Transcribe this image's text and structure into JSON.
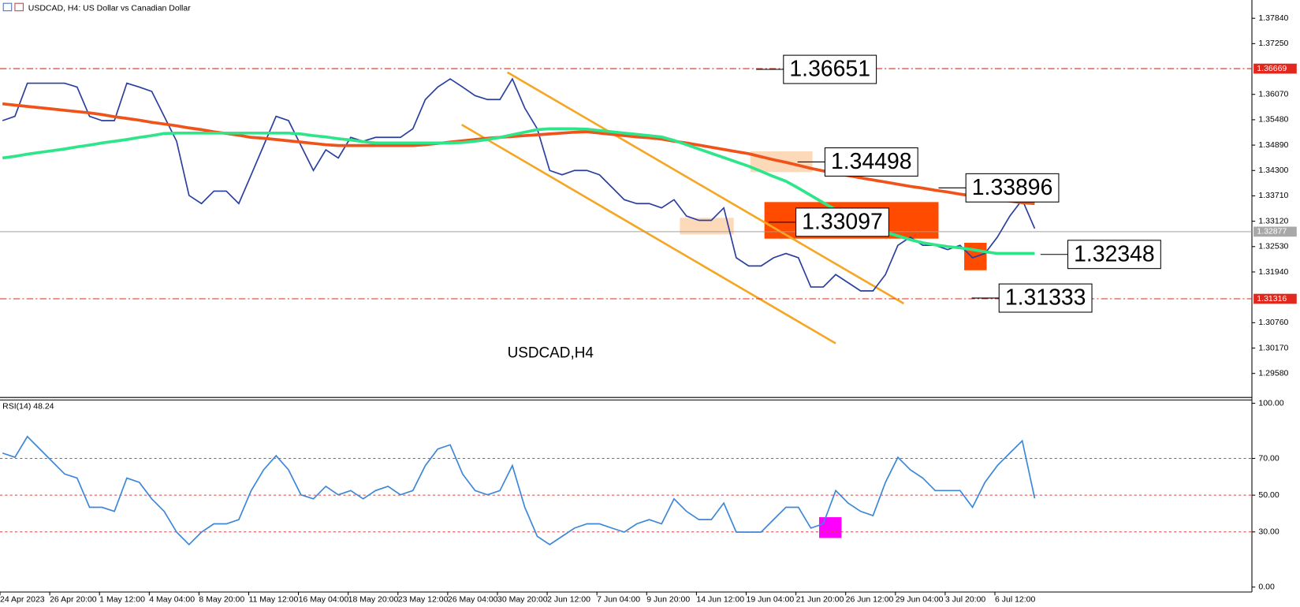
{
  "chart_data": [
    {
      "type": "line",
      "title": "USDCAD, H4:  US Dollar vs Canadian Dollar",
      "label": "USDCAD,H4",
      "categories": [
        "24 Apr 2023",
        null,
        null,
        null,
        "26 Apr 20:00",
        null,
        null,
        null,
        "1 May 12:00",
        null,
        null,
        null,
        "4 May 04:00",
        null,
        null,
        null,
        "8 May 20:00",
        null,
        null,
        null,
        "11 May 12:00",
        null,
        null,
        null,
        "16 May 04:00",
        null,
        null,
        null,
        "18 May 20:00",
        null,
        null,
        null,
        "23 May 12:00",
        null,
        null,
        null,
        "26 May 04:00",
        null,
        null,
        null,
        "30 May 20:00",
        null,
        null,
        null,
        "2 Jun 12:00",
        null,
        null,
        null,
        "7 Jun 04:00",
        null,
        null,
        null,
        "9 Jun 20:00",
        null,
        null,
        null,
        "14 Jun 12:00",
        null,
        null,
        null,
        "19 Jun 04:00",
        null,
        null,
        null,
        "21 Jun 20:00",
        null,
        null,
        null,
        "26 Jun 12:00",
        null,
        null,
        null,
        "29 Jun 04:00",
        null,
        null,
        null,
        "3 Jul 20:00",
        null,
        null,
        null,
        "6 Jul 12:00",
        null,
        null,
        null
      ],
      "series": [
        {
          "color": "#2a3f9e",
          "values": [
            1.3546,
            1.3556,
            1.3633,
            1.3633,
            1.3633,
            1.3633,
            1.3624,
            1.3556,
            1.3546,
            1.3546,
            1.3633,
            1.3624,
            1.3614,
            1.3556,
            1.3498,
            1.3372,
            1.3353,
            1.3382,
            1.3382,
            1.3353,
            1.342,
            1.3488,
            1.3556,
            1.3546,
            1.3488,
            1.343,
            1.3478,
            1.3459,
            1.3507,
            1.3498,
            1.3507,
            1.3507,
            1.3507,
            1.3527,
            1.3595,
            1.3624,
            1.3643,
            1.3624,
            1.3604,
            1.3595,
            1.3595,
            1.3643,
            1.3575,
            1.3527,
            1.343,
            1.342,
            1.343,
            1.343,
            1.342,
            1.3391,
            1.3362,
            1.3353,
            1.3353,
            1.3343,
            1.3362,
            1.3324,
            1.3314,
            1.3314,
            1.3343,
            1.3227,
            1.3208,
            1.3208,
            1.3227,
            1.3237,
            1.3227,
            1.3159,
            1.3159,
            1.3188,
            1.3169,
            1.315,
            1.315,
            1.3188,
            1.3256,
            1.3275,
            1.3256,
            1.3256,
            1.3246,
            1.3256,
            1.3227,
            1.3237,
            1.3275,
            1.3324,
            1.3362,
            1.3295
          ]
        },
        {
          "color": "#f0531a",
          "values": [
            1.3585,
            1.3582,
            1.3579,
            1.3576,
            1.3573,
            1.357,
            1.3567,
            1.3564,
            1.356,
            1.3555,
            1.3551,
            1.3547,
            1.3542,
            1.3538,
            1.3534,
            1.3529,
            1.3525,
            1.352,
            1.3516,
            1.3512,
            1.3507,
            1.3505,
            1.3502,
            1.3499,
            1.3496,
            1.3493,
            1.349,
            1.3488,
            1.3488,
            1.3488,
            1.3488,
            1.3488,
            1.3488,
            1.3488,
            1.349,
            1.3493,
            1.3496,
            1.3499,
            1.3502,
            1.3505,
            1.3507,
            1.3509,
            1.3511,
            1.3513,
            1.3515,
            1.3517,
            1.3519,
            1.352,
            1.3517,
            1.3514,
            1.3511,
            1.3508,
            1.3506,
            1.3503,
            1.3498,
            1.3494,
            1.3489,
            1.3484,
            1.3479,
            1.3474,
            1.3469,
            1.3462,
            1.3455,
            1.3449,
            1.3442,
            1.3435,
            1.3429,
            1.3423,
            1.3418,
            1.3413,
            1.3408,
            1.3403,
            1.3398,
            1.3393,
            1.3389,
            1.3384,
            1.338,
            1.3375,
            1.3371,
            1.3367,
            1.3362,
            1.3359,
            1.3355,
            1.3353
          ]
        },
        {
          "color": "#2ee58a",
          "values": [
            1.3459,
            1.3463,
            1.3468,
            1.3472,
            1.3476,
            1.348,
            1.3485,
            1.3489,
            1.3494,
            1.3498,
            1.3502,
            1.3507,
            1.3511,
            1.3516,
            1.3517,
            1.3517,
            1.3517,
            1.3517,
            1.3517,
            1.3517,
            1.3517,
            1.3517,
            1.3517,
            1.3517,
            1.3515,
            1.3511,
            1.3508,
            1.3504,
            1.3501,
            1.3497,
            1.3494,
            1.3494,
            1.3494,
            1.3494,
            1.3494,
            1.3494,
            1.3494,
            1.3495,
            1.3498,
            1.3502,
            1.3507,
            1.3513,
            1.3519,
            1.3525,
            1.3527,
            1.3527,
            1.3527,
            1.3526,
            1.3523,
            1.352,
            1.3517,
            1.3514,
            1.3511,
            1.3508,
            1.35,
            1.349,
            1.348,
            1.347,
            1.346,
            1.345,
            1.344,
            1.3428,
            1.3416,
            1.3405,
            1.3389,
            1.3372,
            1.3355,
            1.3339,
            1.3325,
            1.331,
            1.3295,
            1.3286,
            1.3278,
            1.3269,
            1.3262,
            1.3257,
            1.3253,
            1.325,
            1.3246,
            1.3241,
            1.3237,
            1.3237,
            1.3237,
            1.3237
          ]
        }
      ],
      "ylim": [
        1.29021,
        1.38265
      ],
      "yticks": [
        {
          "value": 1.3784,
          "label": "1.37840"
        },
        {
          "value": 1.3725,
          "label": "1.37250"
        },
        {
          "value": 1.3607,
          "label": "1.36070"
        },
        {
          "value": 1.3548,
          "label": "1.35480"
        },
        {
          "value": 1.3489,
          "label": "1.34890"
        },
        {
          "value": 1.343,
          "label": "1.34300"
        },
        {
          "value": 1.3371,
          "label": "1.33710"
        },
        {
          "value": 1.3312,
          "label": "1.33120"
        },
        {
          "value": 1.3253,
          "label": "1.32530"
        },
        {
          "value": 1.3194,
          "label": "1.31940"
        },
        {
          "value": 1.3076,
          "label": "1.30760"
        },
        {
          "value": 1.3017,
          "label": "1.30170"
        },
        {
          "value": 1.2958,
          "label": "1.29580"
        }
      ],
      "levels": [
        1.36669,
        1.31316
      ],
      "level_color": "#e0281e",
      "current_price": 1.32877,
      "annotations": [
        1.36651,
        1.34498,
        1.33896,
        1.33097,
        1.32348,
        1.31333
      ]
    },
    {
      "type": "line",
      "title": "RSI(14) 48.24",
      "series": [
        {
          "color": "#3d87d8",
          "values": [
            72.9,
            70.6,
            81.9,
            75.1,
            68.3,
            61.5,
            59.3,
            43.4,
            43.4,
            41.2,
            59.3,
            57.0,
            48.0,
            41.2,
            29.9,
            23.1,
            29.9,
            34.4,
            34.4,
            36.7,
            52.5,
            63.8,
            71.5,
            63.8,
            50.2,
            48.0,
            54.8,
            50.2,
            52.5,
            48.0,
            52.5,
            54.8,
            50.2,
            52.5,
            66.1,
            75.1,
            77.4,
            61.5,
            52.5,
            50.2,
            52.5,
            66.1,
            43.4,
            27.6,
            23.1,
            27.6,
            32.1,
            34.4,
            34.4,
            32.1,
            29.9,
            34.4,
            36.7,
            34.4,
            48.0,
            41.2,
            36.7,
            36.7,
            45.7,
            29.9,
            29.9,
            29.9,
            36.7,
            43.4,
            43.4,
            32.1,
            34.4,
            52.5,
            45.7,
            41.2,
            38.9,
            57.0,
            70.6,
            63.8,
            59.3,
            52.5,
            52.5,
            52.5,
            43.4,
            57.0,
            66.1,
            72.9,
            79.6,
            48.24
          ]
        }
      ],
      "ylim": [
        -2.7,
        101.8
      ],
      "yticks": [
        {
          "value": 100,
          "label": "100.00"
        },
        {
          "value": 70,
          "label": "70.00"
        },
        {
          "value": 50,
          "label": "50.00"
        },
        {
          "value": 30,
          "label": "30.00"
        },
        {
          "value": 0,
          "label": "0.00"
        }
      ],
      "levels": [
        70,
        50,
        30
      ],
      "level_color": "#d94040"
    }
  ]
}
